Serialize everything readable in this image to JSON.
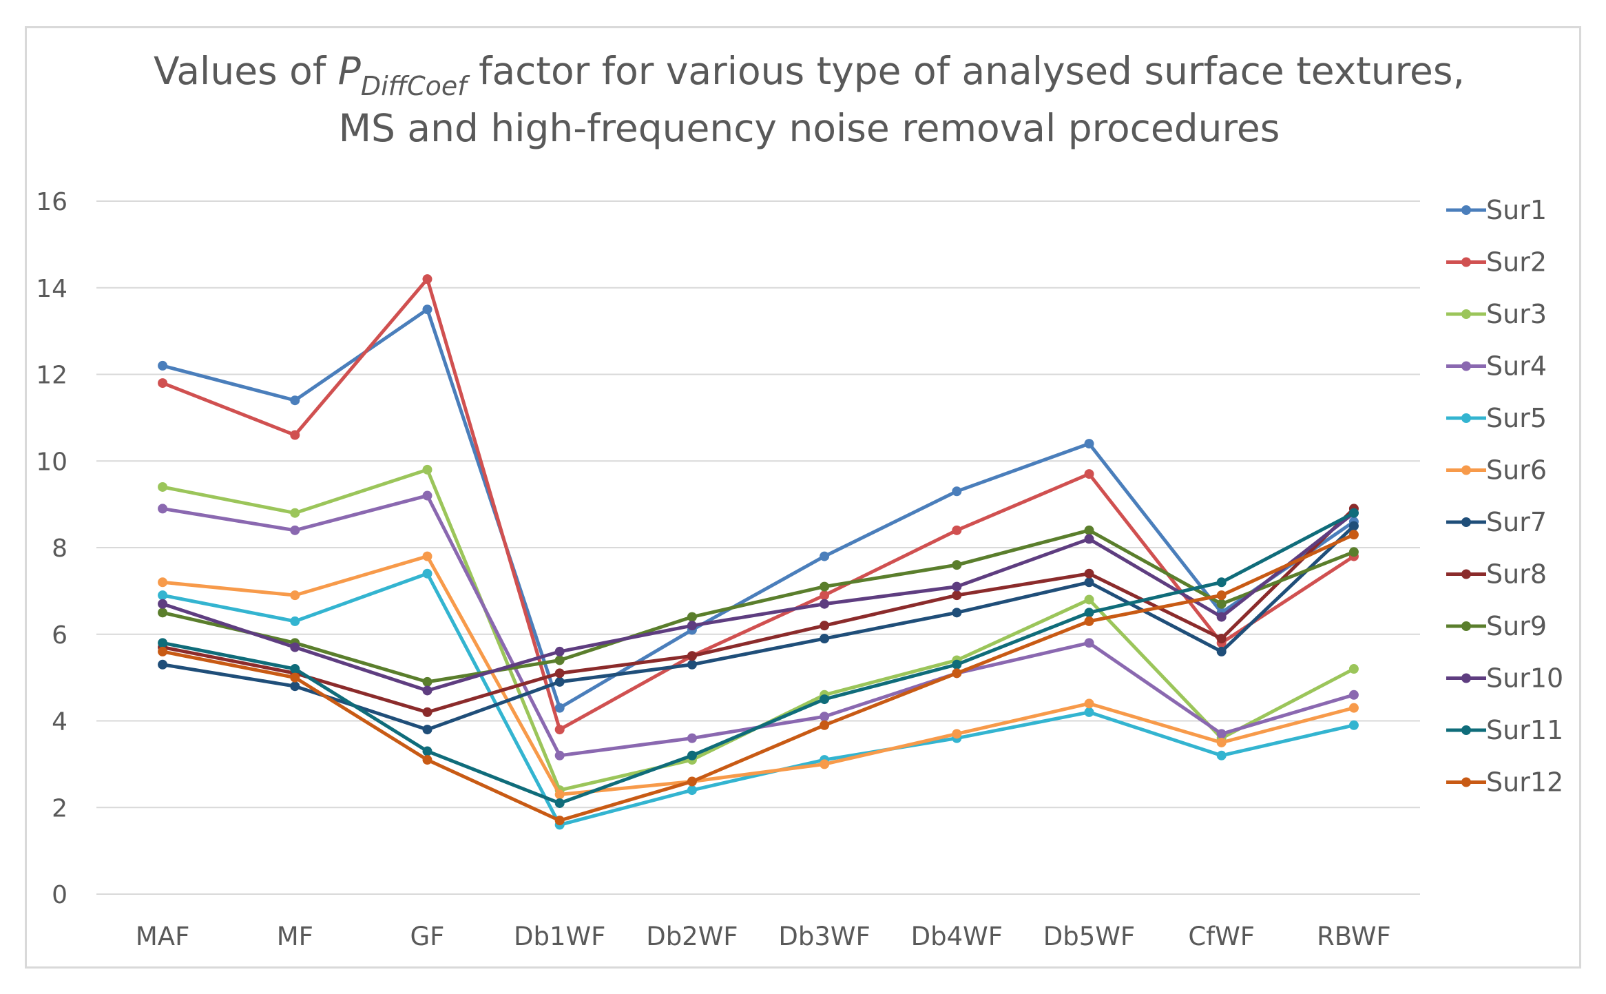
{
  "chart_data": {
    "type": "line",
    "title_parts": {
      "before": "Values of ",
      "symbol": "P",
      "subscript": "DiffCoef",
      "after": " factor for various type of analysed surface textures,",
      "line2": "MS and high-frequency noise removal procedures"
    },
    "xlabel": "",
    "ylabel": "",
    "ylim": [
      0,
      16
    ],
    "yticks": [
      "0",
      "2",
      "4",
      "6",
      "8",
      "10",
      "12",
      "14",
      "16"
    ],
    "grid": true,
    "legend_position": "right",
    "categories": [
      "MAF",
      "MF",
      "GF",
      "Db1WF",
      "Db2WF",
      "Db3WF",
      "Db4WF",
      "Db5WF",
      "CfWF",
      "RBWF"
    ],
    "series": [
      {
        "name": "Sur1",
        "color": "#4a7ebb",
        "values": [
          12.2,
          11.4,
          13.5,
          4.3,
          6.1,
          7.8,
          9.3,
          10.4,
          6.5,
          8.6
        ]
      },
      {
        "name": "Sur2",
        "color": "#d05050",
        "values": [
          11.8,
          10.6,
          14.2,
          3.8,
          5.5,
          6.9,
          8.4,
          9.7,
          5.8,
          7.8
        ]
      },
      {
        "name": "Sur3",
        "color": "#9bc55a",
        "values": [
          9.4,
          8.8,
          9.8,
          2.4,
          3.1,
          4.6,
          5.4,
          6.8,
          3.6,
          5.2
        ]
      },
      {
        "name": "Sur4",
        "color": "#8a68b0",
        "values": [
          8.9,
          8.4,
          9.2,
          3.2,
          3.6,
          4.1,
          5.1,
          5.8,
          3.7,
          4.6
        ]
      },
      {
        "name": "Sur5",
        "color": "#33b4d0",
        "values": [
          6.9,
          6.3,
          7.4,
          1.6,
          2.4,
          3.1,
          3.6,
          4.2,
          3.2,
          3.9
        ]
      },
      {
        "name": "Sur6",
        "color": "#f79a4a",
        "values": [
          7.2,
          6.9,
          7.8,
          2.3,
          2.6,
          3.0,
          3.7,
          4.4,
          3.5,
          4.3
        ]
      },
      {
        "name": "Sur7",
        "color": "#1f4e79",
        "values": [
          5.3,
          4.8,
          3.8,
          4.9,
          5.3,
          5.9,
          6.5,
          7.2,
          5.6,
          8.5
        ]
      },
      {
        "name": "Sur8",
        "color": "#8b2b2b",
        "values": [
          5.7,
          5.1,
          4.2,
          5.1,
          5.5,
          6.2,
          6.9,
          7.4,
          5.9,
          8.9
        ]
      },
      {
        "name": "Sur9",
        "color": "#5a7e2c",
        "values": [
          6.5,
          5.8,
          4.9,
          5.4,
          6.4,
          7.1,
          7.6,
          8.4,
          6.7,
          7.9
        ]
      },
      {
        "name": "Sur10",
        "color": "#5e3d80",
        "values": [
          6.7,
          5.7,
          4.7,
          5.6,
          6.2,
          6.7,
          7.1,
          8.2,
          6.4,
          8.8
        ]
      },
      {
        "name": "Sur11",
        "color": "#0f6c7a",
        "values": [
          5.8,
          5.2,
          3.3,
          2.1,
          3.2,
          4.5,
          5.3,
          6.5,
          7.2,
          8.8
        ]
      },
      {
        "name": "Sur12",
        "color": "#c85a14",
        "values": [
          5.6,
          5.0,
          3.1,
          1.7,
          2.6,
          3.9,
          5.1,
          6.3,
          6.9,
          8.3
        ]
      }
    ]
  }
}
